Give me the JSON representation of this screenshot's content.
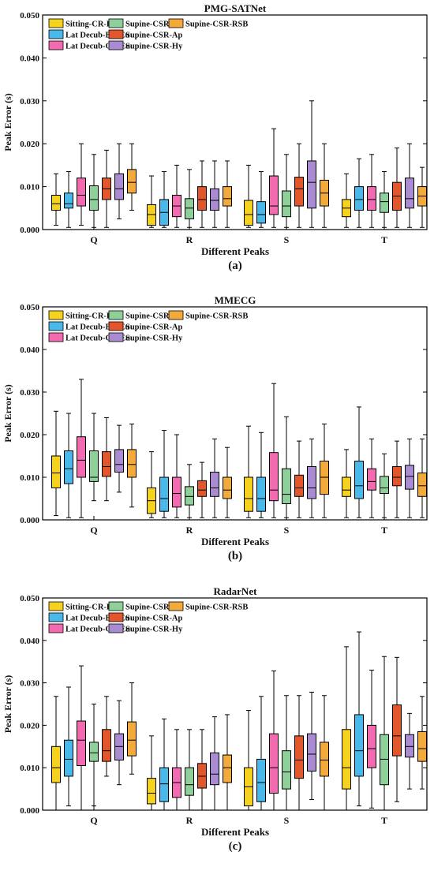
{
  "colors": {
    "Sitting-CR-Eu": "#f4d21e",
    "Lat Decub-BR-Eu": "#4ab9ea",
    "Lat Decub-CR-Eu": "#f26bb0",
    "Supine-CSR-Eu": "#8fcf9a",
    "Supine-CSR-Ap": "#e2562b",
    "Supine-CSR-Hy": "#a98bd1",
    "Supine-CSR-RSB": "#f2aa3a"
  },
  "chart_data": [
    {
      "type": "box",
      "title": "PMG-SATNet",
      "panel_label": "(a)",
      "xlabel": "Different Peaks",
      "ylabel": "Peak Error (s)",
      "ylim": [
        0,
        0.05
      ],
      "yticks": [
        "0.000",
        "0.010",
        "0.020",
        "0.030",
        "0.040",
        "0.050"
      ],
      "categories": [
        "Q",
        "R",
        "S",
        "T"
      ],
      "legend": [
        "Sitting-CR-Eu",
        "Supine-CSR-Eu",
        "Supine-CSR-RSB",
        "Lat Decub-BR-Eu",
        "Supine-CSR-Ap",
        "Lat Decub-CR-Eu",
        "Supine-CSR-Hy"
      ],
      "series": [
        {
          "name": "Sitting-CR-Eu",
          "boxes": [
            [
              0.001,
              0.0045,
              0.006,
              0.008,
              0.013
            ],
            [
              0.0005,
              0.001,
              0.0035,
              0.0058,
              0.0125
            ],
            [
              0.0005,
              0.001,
              0.0035,
              0.0068,
              0.015
            ],
            [
              0.0005,
              0.003,
              0.005,
              0.007,
              0.013
            ]
          ]
        },
        {
          "name": "Lat Decub-BR-Eu",
          "boxes": [
            [
              0.0005,
              0.005,
              0.006,
              0.0085,
              0.0135
            ],
            [
              0.0005,
              0.001,
              0.004,
              0.007,
              0.0135
            ],
            [
              0.0005,
              0.0015,
              0.0035,
              0.0065,
              0.0135
            ],
            [
              0.0005,
              0.0045,
              0.007,
              0.01,
              0.0165
            ]
          ]
        },
        {
          "name": "Lat Decub-CR-Eu",
          "boxes": [
            [
              0.001,
              0.0055,
              0.008,
              0.012,
              0.02
            ],
            [
              0.0005,
              0.003,
              0.0055,
              0.008,
              0.015
            ],
            [
              0.0005,
              0.0035,
              0.0055,
              0.0125,
              0.0235
            ],
            [
              0.0005,
              0.0045,
              0.007,
              0.01,
              0.0175
            ]
          ]
        },
        {
          "name": "Supine-CSR-Eu",
          "boxes": [
            [
              0.0005,
              0.0045,
              0.007,
              0.0102,
              0.0175
            ],
            [
              0.0005,
              0.0025,
              0.005,
              0.0072,
              0.014
            ],
            [
              0.0005,
              0.003,
              0.0055,
              0.009,
              0.0175
            ],
            [
              0.0005,
              0.004,
              0.0065,
              0.0085,
              0.0135
            ]
          ]
        },
        {
          "name": "Supine-CSR-Ap",
          "boxes": [
            [
              0.0005,
              0.007,
              0.0095,
              0.012,
              0.0185
            ],
            [
              0.0005,
              0.0045,
              0.007,
              0.01,
              0.016
            ],
            [
              0.0005,
              0.0055,
              0.0095,
              0.0122,
              0.02
            ],
            [
              0.0005,
              0.0045,
              0.0078,
              0.011,
              0.019
            ]
          ]
        },
        {
          "name": "Supine-CSR-Hy",
          "boxes": [
            [
              0.0025,
              0.007,
              0.0095,
              0.013,
              0.02
            ],
            [
              0.0005,
              0.0045,
              0.0068,
              0.0095,
              0.016
            ],
            [
              0.0005,
              0.005,
              0.011,
              0.016,
              0.03
            ],
            [
              0.0005,
              0.005,
              0.0072,
              0.012,
              0.02
            ]
          ]
        },
        {
          "name": "Supine-CSR-RSB",
          "boxes": [
            [
              0.0045,
              0.0085,
              0.011,
              0.014,
              0.02
            ],
            [
              0.0005,
              0.0055,
              0.0072,
              0.01,
              0.016
            ],
            [
              0.0005,
              0.0055,
              0.0085,
              0.0115,
              0.02
            ],
            [
              0.0005,
              0.0055,
              0.0078,
              0.01,
              0.0145
            ]
          ]
        }
      ]
    },
    {
      "type": "box",
      "title": "MMECG",
      "panel_label": "(b)",
      "xlabel": "Different Peaks",
      "ylabel": "Peak Error (s)",
      "ylim": [
        0,
        0.05
      ],
      "yticks": [
        "0.000",
        "0.010",
        "0.020",
        "0.030",
        "0.040",
        "0.050"
      ],
      "categories": [
        "Q",
        "R",
        "S",
        "T"
      ],
      "legend": [
        "Sitting-CR-Eu",
        "Supine-CSR-Eu",
        "Supine-CSR-RSB",
        "Lat Decub-BR-Eu",
        "Supine-CSR-Ap",
        "Lat Decub-CR-Eu",
        "Supine-CSR-Hy"
      ],
      "series": [
        {
          "name": "Sitting-CR-Eu",
          "boxes": [
            [
              0.001,
              0.0075,
              0.011,
              0.015,
              0.0255
            ],
            [
              0.0005,
              0.0015,
              0.0045,
              0.0075,
              0.016
            ],
            [
              0.0005,
              0.002,
              0.005,
              0.01,
              0.022
            ],
            [
              0.0005,
              0.0055,
              0.007,
              0.01,
              0.0165
            ]
          ]
        },
        {
          "name": "Lat Decub-BR-Eu",
          "boxes": [
            [
              0.0005,
              0.0085,
              0.012,
              0.0162,
              0.025
            ],
            [
              0.0005,
              0.002,
              0.005,
              0.01,
              0.021
            ],
            [
              0.0005,
              0.002,
              0.005,
              0.01,
              0.0205
            ],
            [
              0.0005,
              0.005,
              0.008,
              0.0138,
              0.0265
            ]
          ]
        },
        {
          "name": "Lat Decub-CR-Eu",
          "boxes": [
            [
              0.0005,
              0.01,
              0.014,
              0.0195,
              0.033
            ],
            [
              0.0005,
              0.003,
              0.0062,
              0.01,
              0.02
            ],
            [
              0.0005,
              0.0045,
              0.007,
              0.0158,
              0.032
            ],
            [
              0.0005,
              0.007,
              0.009,
              0.012,
              0.019
            ]
          ]
        },
        {
          "name": "Supine-CSR-Eu",
          "boxes": [
            [
              0.0045,
              0.009,
              0.01,
              0.0162,
              0.025
            ],
            [
              0.0005,
              0.0035,
              0.0055,
              0.0078,
              0.013
            ],
            [
              0.0005,
              0.0038,
              0.006,
              0.012,
              0.0242
            ],
            [
              0.0005,
              0.0062,
              0.0075,
              0.0102,
              0.0155
            ]
          ]
        },
        {
          "name": "Supine-CSR-Ap",
          "boxes": [
            [
              0.0045,
              0.0102,
              0.0125,
              0.016,
              0.024
            ],
            [
              0.0005,
              0.0055,
              0.007,
              0.0092,
              0.0135
            ],
            [
              0.0005,
              0.0055,
              0.0075,
              0.0105,
              0.0185
            ],
            [
              0.0005,
              0.008,
              0.01,
              0.0125,
              0.0185
            ]
          ]
        },
        {
          "name": "Supine-CSR-Hy",
          "boxes": [
            [
              0.0065,
              0.0112,
              0.013,
              0.0165,
              0.0222
            ],
            [
              0.0005,
              0.0055,
              0.0075,
              0.0112,
              0.019
            ],
            [
              0.0005,
              0.005,
              0.0075,
              0.0125,
              0.019
            ],
            [
              0.0005,
              0.0072,
              0.0102,
              0.0128,
              0.019
            ]
          ]
        },
        {
          "name": "Supine-CSR-RSB",
          "boxes": [
            [
              0.003,
              0.01,
              0.013,
              0.0165,
              0.0225
            ],
            [
              0.0005,
              0.005,
              0.007,
              0.01,
              0.017
            ],
            [
              0.0005,
              0.006,
              0.01,
              0.0138,
              0.0225
            ],
            [
              0.0005,
              0.0055,
              0.008,
              0.011,
              0.019
            ]
          ]
        }
      ]
    },
    {
      "type": "box",
      "title": "RadarNet",
      "panel_label": "(c)",
      "xlabel": "Different Peaks",
      "ylabel": "Peak Error (s)",
      "ylim": [
        0,
        0.05
      ],
      "yticks": [
        "0.000",
        "0.010",
        "0.020",
        "0.030",
        "0.040",
        "0.050"
      ],
      "categories": [
        "Q",
        "R",
        "S",
        "T"
      ],
      "legend": [
        "Sitting-CR-Eu",
        "Supine-CSR-Eu",
        "Supine-CSR-RSB",
        "Lat Decub-BR-Eu",
        "Supine-CSR-Ap",
        "Lat Decub-CR-Eu",
        "Supine-CSR-Hy"
      ],
      "series": [
        {
          "name": "Sitting-CR-Eu",
          "boxes": [
            [
              0.0,
              0.0065,
              0.01,
              0.015,
              0.0268
            ],
            [
              0.0,
              0.0015,
              0.004,
              0.0075,
              0.0175
            ],
            [
              0.0,
              0.001,
              0.0055,
              0.01,
              0.0235
            ],
            [
              0.0,
              0.005,
              0.01,
              0.019,
              0.0385
            ]
          ]
        },
        {
          "name": "Lat Decub-BR-Eu",
          "boxes": [
            [
              0.001,
              0.008,
              0.012,
              0.0165,
              0.029
            ],
            [
              0.0,
              0.002,
              0.0062,
              0.01,
              0.0215
            ],
            [
              0.0,
              0.002,
              0.0065,
              0.012,
              0.0268
            ],
            [
              0.001,
              0.008,
              0.014,
              0.0225,
              0.042
            ]
          ]
        },
        {
          "name": "Lat Decub-CR-Eu",
          "boxes": [
            [
              0.0,
              0.0105,
              0.0165,
              0.021,
              0.034
            ],
            [
              0.0,
              0.003,
              0.0065,
              0.01,
              0.019
            ],
            [
              0.0,
              0.004,
              0.01,
              0.018,
              0.0328
            ],
            [
              0.0005,
              0.01,
              0.0145,
              0.02,
              0.033
            ]
          ]
        },
        {
          "name": "Supine-CSR-Eu",
          "boxes": [
            [
              0.001,
              0.0115,
              0.0135,
              0.016,
              0.025
            ],
            [
              0.0,
              0.0035,
              0.006,
              0.01,
              0.019
            ],
            [
              0.0,
              0.005,
              0.009,
              0.014,
              0.027
            ],
            [
              0.0,
              0.006,
              0.012,
              0.0178,
              0.0362
            ]
          ]
        },
        {
          "name": "Supine-CSR-Ap",
          "boxes": [
            [
              0.008,
              0.0115,
              0.014,
              0.019,
              0.0268
            ],
            [
              0.0,
              0.0052,
              0.008,
              0.011,
              0.019
            ],
            [
              0.0,
              0.0075,
              0.0118,
              0.0175,
              0.027
            ],
            [
              0.002,
              0.0128,
              0.0175,
              0.0248,
              0.036
            ]
          ]
        },
        {
          "name": "Supine-CSR-Hy",
          "boxes": [
            [
              0.006,
              0.0118,
              0.015,
              0.018,
              0.0258
            ],
            [
              0.0,
              0.006,
              0.0085,
              0.0135,
              0.022
            ],
            [
              0.0025,
              0.0092,
              0.0132,
              0.018,
              0.0278
            ],
            [
              0.005,
              0.0125,
              0.015,
              0.0178,
              0.0228
            ]
          ]
        },
        {
          "name": "Supine-CSR-RSB",
          "boxes": [
            [
              0.0085,
              0.0128,
              0.0165,
              0.0208,
              0.03
            ],
            [
              0.0,
              0.0065,
              0.01,
              0.013,
              0.0225
            ],
            [
              0.0,
              0.008,
              0.0118,
              0.016,
              0.027
            ],
            [
              0.005,
              0.0115,
              0.0145,
              0.0185,
              0.0268
            ]
          ]
        }
      ]
    }
  ]
}
